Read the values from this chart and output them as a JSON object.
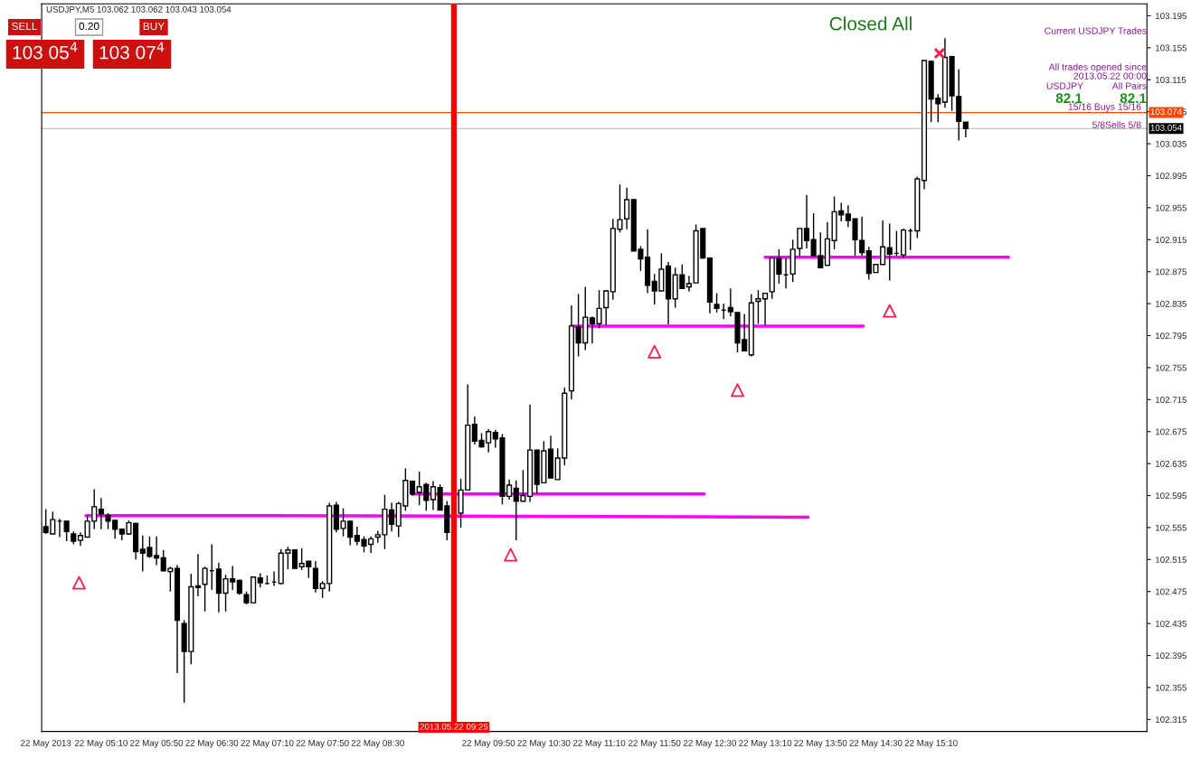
{
  "chart_data": {
    "type": "candlestick",
    "title": "USDJPY,M5 103.062 103.062 103.043 103.054",
    "x": [
      "2013-05-22T04:30",
      "2013-05-22T04:35",
      "2013-05-22T04:40",
      "2013-05-22T04:45",
      "2013-05-22T04:50",
      "2013-05-22T04:55",
      "2013-05-22T05:00",
      "2013-05-22T05:05",
      "2013-05-22T05:10",
      "2013-05-22T05:15",
      "2013-05-22T05:20",
      "2013-05-22T05:25",
      "2013-05-22T05:30",
      "2013-05-22T05:35",
      "2013-05-22T05:40",
      "2013-05-22T05:45",
      "2013-05-22T05:50",
      "2013-05-22T05:55",
      "2013-05-22T06:00",
      "2013-05-22T06:05",
      "2013-05-22T06:10",
      "2013-05-22T06:15",
      "2013-05-22T06:20",
      "2013-05-22T06:25",
      "2013-05-22T06:30",
      "2013-05-22T06:35",
      "2013-05-22T06:40",
      "2013-05-22T06:45",
      "2013-05-22T06:50",
      "2013-05-22T06:55",
      "2013-05-22T07:00",
      "2013-05-22T07:05",
      "2013-05-22T07:10",
      "2013-05-22T07:15",
      "2013-05-22T07:20",
      "2013-05-22T07:25",
      "2013-05-22T07:30",
      "2013-05-22T07:35",
      "2013-05-22T07:40",
      "2013-05-22T07:45",
      "2013-05-22T07:50",
      "2013-05-22T07:55",
      "2013-05-22T08:00",
      "2013-05-22T08:05",
      "2013-05-22T08:10",
      "2013-05-22T08:15",
      "2013-05-22T08:20",
      "2013-05-22T08:25",
      "2013-05-22T08:30",
      "2013-05-22T08:35",
      "2013-05-22T08:40",
      "2013-05-22T08:45",
      "2013-05-22T08:50",
      "2013-05-22T08:55",
      "2013-05-22T09:00",
      "2013-05-22T09:05",
      "2013-05-22T09:10",
      "2013-05-22T09:15",
      "2013-05-22T09:20",
      "2013-05-22T09:30",
      "2013-05-22T09:35",
      "2013-05-22T09:40",
      "2013-05-22T09:45",
      "2013-05-22T09:50",
      "2013-05-22T09:55",
      "2013-05-22T10:00",
      "2013-05-22T10:05",
      "2013-05-22T10:10",
      "2013-05-22T10:15",
      "2013-05-22T10:20",
      "2013-05-22T10:25",
      "2013-05-22T10:30",
      "2013-05-22T10:35",
      "2013-05-22T10:40",
      "2013-05-22T10:45",
      "2013-05-22T10:50",
      "2013-05-22T10:55",
      "2013-05-22T11:00",
      "2013-05-22T11:05",
      "2013-05-22T11:10",
      "2013-05-22T11:15",
      "2013-05-22T11:20",
      "2013-05-22T11:25",
      "2013-05-22T11:30",
      "2013-05-22T11:35",
      "2013-05-22T11:40",
      "2013-05-22T11:45",
      "2013-05-22T11:50",
      "2013-05-22T11:55",
      "2013-05-22T12:00",
      "2013-05-22T12:05",
      "2013-05-22T12:10",
      "2013-05-22T12:15",
      "2013-05-22T12:20",
      "2013-05-22T12:25",
      "2013-05-22T12:30",
      "2013-05-22T12:35",
      "2013-05-22T12:40",
      "2013-05-22T12:45",
      "2013-05-22T12:50",
      "2013-05-22T12:55",
      "2013-05-22T13:00",
      "2013-05-22T13:05",
      "2013-05-22T13:10",
      "2013-05-22T13:15",
      "2013-05-22T13:20",
      "2013-05-22T13:25",
      "2013-05-22T13:30",
      "2013-05-22T13:35",
      "2013-05-22T13:40",
      "2013-05-22T13:45",
      "2013-05-22T13:50",
      "2013-05-22T13:55",
      "2013-05-22T14:00",
      "2013-05-22T14:05",
      "2013-05-22T14:10",
      "2013-05-22T14:15",
      "2013-05-22T14:20",
      "2013-05-22T14:25",
      "2013-05-22T14:30",
      "2013-05-22T14:35",
      "2013-05-22T14:40",
      "2013-05-22T14:45",
      "2013-05-22T14:50",
      "2013-05-22T14:55",
      "2013-05-22T15:00",
      "2013-05-22T15:05",
      "2013-05-22T15:10",
      "2013-05-22T15:15",
      "2013-05-22T15:20",
      "2013-05-22T15:25",
      "2013-05-22T15:30",
      "2013-05-22T15:35"
    ],
    "ohlc": [
      [
        102.556,
        102.578,
        102.547,
        102.549
      ],
      [
        102.547,
        102.575,
        102.547,
        102.565
      ],
      [
        102.563,
        102.566,
        102.543,
        102.563
      ],
      [
        102.563,
        102.563,
        102.538,
        102.55
      ],
      [
        102.547,
        102.55,
        102.534,
        102.538
      ],
      [
        102.539,
        102.549,
        102.532,
        102.545
      ],
      [
        102.543,
        102.57,
        102.543,
        102.563
      ],
      [
        102.563,
        102.603,
        102.553,
        102.581
      ],
      [
        102.578,
        102.592,
        102.553,
        102.572
      ],
      [
        102.57,
        102.573,
        102.553,
        102.563
      ],
      [
        102.564,
        102.564,
        102.541,
        102.553
      ],
      [
        102.553,
        102.553,
        102.539,
        102.547
      ],
      [
        102.547,
        102.564,
        102.546,
        102.561
      ],
      [
        102.56,
        102.561,
        102.515,
        102.525
      ],
      [
        102.528,
        102.545,
        102.5,
        102.523
      ],
      [
        102.53,
        102.544,
        102.517,
        102.519
      ],
      [
        102.52,
        102.544,
        102.508,
        102.517
      ],
      [
        102.517,
        102.527,
        102.5,
        102.501
      ],
      [
        102.5,
        102.506,
        102.475,
        102.504
      ],
      [
        102.504,
        102.508,
        102.373,
        102.439
      ],
      [
        102.435,
        102.439,
        102.336,
        102.4
      ],
      [
        102.4,
        102.497,
        102.384,
        102.481
      ],
      [
        102.482,
        102.522,
        102.469,
        102.48
      ],
      [
        102.484,
        102.506,
        102.45,
        102.504
      ],
      [
        102.501,
        102.534,
        102.477,
        102.501
      ],
      [
        102.503,
        102.511,
        102.449,
        102.473
      ],
      [
        102.473,
        102.496,
        102.45,
        102.491
      ],
      [
        102.491,
        102.507,
        102.477,
        102.487
      ],
      [
        102.489,
        102.49,
        102.471,
        102.473
      ],
      [
        102.471,
        102.475,
        102.459,
        102.461
      ],
      [
        102.461,
        102.493,
        102.461,
        102.493
      ],
      [
        102.492,
        102.498,
        102.48,
        102.486
      ],
      [
        102.485,
        102.495,
        102.484,
        102.485
      ],
      [
        102.487,
        102.5,
        102.482,
        102.487
      ],
      [
        102.485,
        102.528,
        102.484,
        102.523
      ],
      [
        102.523,
        102.531,
        102.503,
        102.527
      ],
      [
        102.527,
        102.527,
        102.504,
        102.504
      ],
      [
        102.506,
        102.529,
        102.502,
        102.51
      ],
      [
        102.513,
        102.513,
        102.492,
        102.506
      ],
      [
        102.504,
        102.513,
        102.474,
        102.479
      ],
      [
        102.479,
        102.488,
        102.467,
        102.485
      ],
      [
        102.485,
        102.586,
        102.475,
        102.582
      ],
      [
        102.583,
        102.587,
        102.549,
        102.553
      ],
      [
        102.554,
        102.579,
        102.544,
        102.563
      ],
      [
        102.563,
        102.563,
        102.533,
        102.543
      ],
      [
        102.545,
        102.556,
        102.533,
        102.538
      ],
      [
        102.54,
        102.544,
        102.524,
        102.532
      ],
      [
        102.534,
        102.544,
        102.523,
        102.541
      ],
      [
        102.543,
        102.551,
        102.536,
        102.546
      ],
      [
        102.546,
        102.596,
        102.528,
        102.578
      ],
      [
        102.577,
        102.586,
        102.55,
        102.559
      ],
      [
        102.557,
        102.587,
        102.543,
        102.585
      ],
      [
        102.582,
        102.629,
        102.576,
        102.614
      ],
      [
        102.613,
        102.613,
        102.595,
        102.597
      ],
      [
        102.599,
        102.625,
        102.583,
        102.606
      ],
      [
        102.609,
        102.611,
        102.576,
        102.589
      ],
      [
        102.59,
        102.613,
        102.577,
        102.606
      ],
      [
        102.605,
        102.609,
        102.577,
        102.577
      ],
      [
        102.582,
        102.588,
        102.539,
        102.549
      ],
      [
        102.573,
        102.616,
        102.555,
        102.602
      ],
      [
        102.602,
        102.734,
        102.602,
        102.683
      ],
      [
        102.684,
        102.694,
        102.659,
        102.663
      ],
      [
        102.664,
        102.673,
        102.655,
        102.656
      ],
      [
        102.661,
        102.678,
        102.649,
        102.675
      ],
      [
        102.674,
        102.677,
        102.655,
        102.666
      ],
      [
        102.667,
        102.672,
        102.584,
        102.594
      ],
      [
        102.594,
        102.615,
        102.59,
        102.608
      ],
      [
        102.604,
        102.614,
        102.539,
        102.588
      ],
      [
        102.588,
        102.627,
        102.588,
        102.595
      ],
      [
        102.594,
        102.709,
        102.587,
        102.652
      ],
      [
        102.652,
        102.652,
        102.597,
        102.609
      ],
      [
        102.611,
        102.663,
        102.611,
        102.651
      ],
      [
        102.653,
        102.67,
        102.617,
        102.617
      ],
      [
        102.615,
        102.654,
        102.615,
        102.642
      ],
      [
        102.642,
        102.73,
        102.633,
        102.723
      ],
      [
        102.726,
        102.833,
        102.715,
        102.807
      ],
      [
        102.806,
        102.847,
        102.769,
        102.786
      ],
      [
        102.786,
        102.856,
        102.777,
        102.818
      ],
      [
        102.817,
        102.819,
        102.785,
        102.81
      ],
      [
        102.81,
        102.852,
        102.804,
        102.829
      ],
      [
        102.83,
        102.852,
        102.808,
        102.851
      ],
      [
        102.85,
        102.941,
        102.84,
        102.929
      ],
      [
        102.928,
        102.984,
        102.924,
        102.94
      ],
      [
        102.941,
        102.98,
        102.928,
        102.965
      ],
      [
        102.965,
        102.966,
        102.901,
        102.901
      ],
      [
        102.903,
        102.907,
        102.876,
        102.891
      ],
      [
        102.893,
        102.928,
        102.848,
        102.858
      ],
      [
        102.863,
        102.872,
        102.834,
        102.851
      ],
      [
        102.851,
        102.898,
        102.851,
        102.878
      ],
      [
        102.882,
        102.887,
        102.809,
        102.841
      ],
      [
        102.841,
        102.88,
        102.83,
        102.871
      ],
      [
        102.871,
        102.884,
        102.854,
        102.854
      ],
      [
        102.856,
        102.87,
        102.85,
        102.86
      ],
      [
        102.861,
        102.934,
        102.861,
        102.926
      ],
      [
        102.929,
        102.929,
        102.891,
        102.892
      ],
      [
        102.892,
        102.893,
        102.823,
        102.837
      ],
      [
        102.834,
        102.848,
        102.824,
        102.829
      ],
      [
        102.827,
        102.835,
        102.816,
        102.827
      ],
      [
        102.83,
        102.854,
        102.819,
        102.825
      ],
      [
        102.824,
        102.824,
        102.774,
        102.786
      ],
      [
        102.79,
        102.822,
        102.776,
        102.776
      ],
      [
        102.771,
        102.847,
        102.769,
        102.836
      ],
      [
        102.838,
        102.852,
        102.81,
        102.841
      ],
      [
        102.841,
        102.848,
        102.808,
        102.848
      ],
      [
        102.85,
        102.892,
        102.841,
        102.892
      ],
      [
        102.892,
        102.903,
        102.86,
        102.872
      ],
      [
        102.871,
        102.892,
        102.854,
        102.871
      ],
      [
        102.872,
        102.915,
        102.862,
        102.903
      ],
      [
        102.904,
        102.929,
        102.894,
        102.929
      ],
      [
        102.929,
        102.971,
        102.904,
        102.914
      ],
      [
        102.915,
        102.948,
        102.895,
        102.895
      ],
      [
        102.895,
        102.924,
        102.88,
        102.88
      ],
      [
        102.883,
        102.937,
        102.882,
        102.916
      ],
      [
        102.914,
        102.969,
        102.903,
        102.95
      ],
      [
        102.951,
        102.961,
        102.938,
        102.946
      ],
      [
        102.947,
        102.958,
        102.931,
        102.939
      ],
      [
        102.941,
        102.941,
        102.895,
        102.915
      ],
      [
        102.914,
        102.944,
        102.895,
        102.899
      ],
      [
        102.901,
        102.906,
        102.865,
        102.873
      ],
      [
        102.874,
        102.884,
        102.874,
        102.884
      ],
      [
        102.884,
        102.939,
        102.884,
        102.906
      ],
      [
        102.905,
        102.935,
        102.864,
        102.897
      ],
      [
        102.898,
        102.926,
        102.895,
        102.898
      ],
      [
        102.896,
        102.929,
        102.892,
        102.927
      ],
      [
        102.926,
        102.929,
        102.902,
        102.926
      ],
      [
        102.926,
        102.994,
        102.917,
        102.991
      ],
      [
        102.989,
        103.139,
        102.978,
        103.139
      ],
      [
        103.138,
        103.139,
        103.062,
        103.091
      ],
      [
        103.092,
        103.097,
        103.062,
        103.085
      ],
      [
        103.087,
        103.167,
        103.08,
        103.143
      ],
      [
        103.144,
        103.145,
        103.076,
        103.095
      ],
      [
        103.094,
        103.128,
        103.039,
        103.063
      ],
      [
        103.062,
        103.062,
        103.043,
        103.054
      ]
    ],
    "series": [
      {
        "type": "line",
        "color": "#ff00ff",
        "x": [
          "2013-05-22T04:59",
          "2013-05-22T07:10",
          "2013-05-22T13:41"
        ],
        "values": [
          102.57,
          102.57,
          102.568
        ]
      },
      {
        "type": "line",
        "color": "#ff00ff",
        "x": [
          "2013-05-22T08:55",
          "2013-05-22T12:26"
        ],
        "values": [
          102.597,
          102.597
        ]
      },
      {
        "type": "line",
        "color": "#ff00ff",
        "x": [
          "2013-05-22T10:50",
          "2013-05-22T14:21"
        ],
        "values": [
          102.807,
          102.807
        ]
      },
      {
        "type": "line",
        "color": "#ff00ff",
        "x": [
          "2013-05-22T13:10",
          "2013-05-22T16:06"
        ],
        "values": [
          102.893,
          102.893
        ]
      },
      {
        "type": "scatter",
        "marker": "triangle",
        "color": "#ff1a4a",
        "x": [
          "2013-05-22T04:54",
          "2013-05-22T10:06",
          "2013-05-22T11:50",
          "2013-05-22T12:50",
          "2013-05-22T14:40"
        ],
        "values": [
          102.486,
          102.521,
          102.775,
          102.727,
          102.826
        ]
      },
      {
        "type": "scatter",
        "marker": "cross",
        "color": "#e8284a",
        "x": [
          "2013-05-22T15:16"
        ],
        "values": [
          103.148
        ]
      }
    ],
    "ref_lines": [
      {
        "axis": "x",
        "value": "2013-05-22T09:25",
        "label": "2013.05.22 09:25",
        "color": "#ff0000"
      },
      {
        "axis": "y",
        "value": 103.074,
        "label": "103.074",
        "color": "#ff4500"
      },
      {
        "axis": "y",
        "value": 103.054,
        "label": "103.054",
        "color": "#c0c0c0"
      }
    ],
    "xlim": [
      "2013-05-22T04:27",
      "2013-05-22T17:46"
    ],
    "xticks": [
      {
        "value": "2013-05-22T04:30",
        "label": "22 May 2013"
      },
      {
        "value": "2013-05-22T05:10",
        "label": "22 May 05:10"
      },
      {
        "value": "2013-05-22T05:50",
        "label": "22 May 05:50"
      },
      {
        "value": "2013-05-22T06:30",
        "label": "22 May 06:30"
      },
      {
        "value": "2013-05-22T07:10",
        "label": "22 May 07:10"
      },
      {
        "value": "2013-05-22T07:50",
        "label": "22 May 07:50"
      },
      {
        "value": "2013-05-22T08:30",
        "label": "22 May 08:30"
      },
      {
        "value": "2013-05-22T09:50",
        "label": "22 May 09:50"
      },
      {
        "value": "2013-05-22T10:30",
        "label": "22 May 10:30"
      },
      {
        "value": "2013-05-22T11:10",
        "label": "22 May 11:10"
      },
      {
        "value": "2013-05-22T11:50",
        "label": "22 May 11:50"
      },
      {
        "value": "2013-05-22T12:30",
        "label": "22 May 12:30"
      },
      {
        "value": "2013-05-22T13:10",
        "label": "22 May 13:10"
      },
      {
        "value": "2013-05-22T13:50",
        "label": "22 May 13:50"
      },
      {
        "value": "2013-05-22T14:30",
        "label": "22 May 14:30"
      },
      {
        "value": "2013-05-22T15:10",
        "label": "22 May 15:10"
      }
    ],
    "ylim": [
      102.3,
      103.21
    ],
    "yticks": [
      102.315,
      102.355,
      102.395,
      102.435,
      102.475,
      102.515,
      102.555,
      102.595,
      102.635,
      102.675,
      102.715,
      102.755,
      102.795,
      102.835,
      102.875,
      102.915,
      102.955,
      102.995,
      103.035,
      103.075,
      103.115,
      103.155,
      103.195
    ],
    "annotations": [
      "SELL",
      "0.20",
      "BUY",
      "103 05$^{4}$",
      "103 07$^{4}$",
      "Closed All",
      "Current USDJPY Trades",
      "All trades opened since",
      "2013.05.22 00:00",
      "USDJPY",
      "All Pairs",
      "82.1",
      "82.1",
      "15/16 Buys 15/16",
      "5/8Sells 5/8"
    ]
  }
}
